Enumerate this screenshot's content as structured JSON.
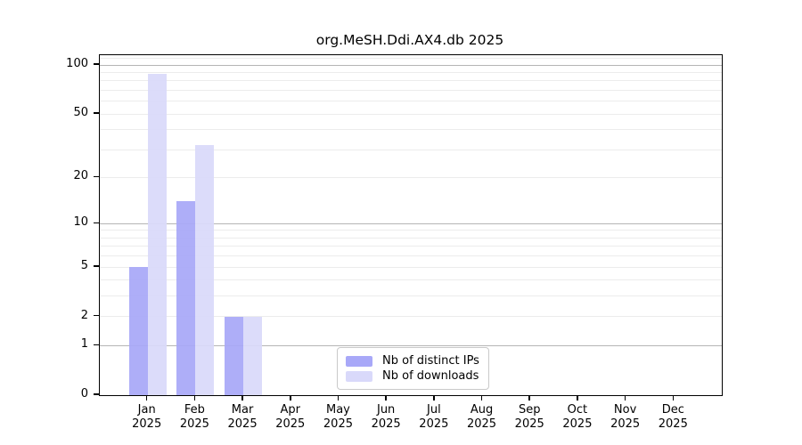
{
  "chart_data": {
    "type": "bar",
    "title": "org.MeSH.Ddi.AX4.db 2025",
    "year_label": "2025",
    "categories": [
      "Jan",
      "Feb",
      "Mar",
      "Apr",
      "May",
      "Jun",
      "Jul",
      "Aug",
      "Sep",
      "Oct",
      "Nov",
      "Dec"
    ],
    "series": [
      {
        "name": "Nb of distinct IPs",
        "color": "#a8a8f8",
        "values": [
          5,
          14,
          2,
          0,
          0,
          0,
          0,
          0,
          0,
          0,
          0,
          0
        ]
      },
      {
        "name": "Nb of downloads",
        "color": "#d9d9fa",
        "values": [
          88,
          32,
          2,
          0,
          0,
          0,
          0,
          0,
          0,
          0,
          0,
          0
        ]
      }
    ],
    "xlabel": "",
    "ylabel": "",
    "yscale": "log10(1+x)",
    "y_ticks": [
      0,
      1,
      2,
      5,
      10,
      20,
      50,
      100
    ],
    "y_top": 115,
    "grid_major": [
      1,
      10,
      100
    ],
    "grid_minor": [
      2,
      3,
      4,
      5,
      6,
      7,
      8,
      9,
      20,
      30,
      40,
      50,
      60,
      70,
      80,
      90,
      110
    ],
    "legend_position": "bottom-center",
    "grid": "on"
  }
}
